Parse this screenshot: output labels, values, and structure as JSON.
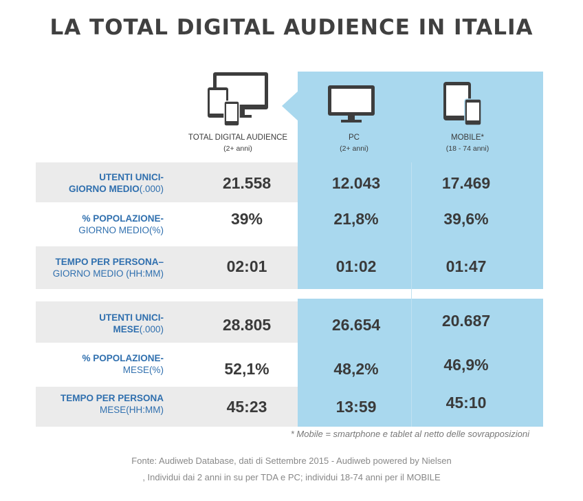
{
  "title": "LA TOTAL DIGITAL AUDIENCE IN ITALIA",
  "columns": [
    {
      "label": "TOTAL DIGITAL AUDIENCE",
      "sub": "(2+ anni)",
      "icon": "multi-device-icon"
    },
    {
      "label": "PC",
      "sub": "(2+ anni)",
      "icon": "monitor-icon"
    },
    {
      "label": "MOBILE*",
      "sub": "(18 - 74 anni)",
      "icon": "tablet-phone-icon"
    }
  ],
  "rows": [
    {
      "l1": "UTENTI UNICI-",
      "l2a": "GIORNO MEDIO",
      "l2b": "(.000)",
      "values": [
        "21.558",
        "12.043",
        "17.469"
      ]
    },
    {
      "l1": "% POPOLAZIONE-",
      "l2a": "",
      "l2b": "GIORNO MEDIO(%)",
      "values": [
        "39%",
        "21,8%",
        "39,6%"
      ]
    },
    {
      "l1": "TEMPO PER PERSONA–",
      "l2a": "",
      "l2b": "GIORNO MEDIO (HH:MM)",
      "values": [
        "02:01",
        "01:02",
        "01:47"
      ]
    },
    {
      "l1": "UTENTI UNICI-",
      "l2a": "MESE",
      "l2b": "(.000)",
      "values": [
        "28.805",
        "26.654",
        "20.687"
      ]
    },
    {
      "l1": "% POPOLAZIONE-",
      "l2a": "",
      "l2b": "MESE(%)",
      "values": [
        "52,1%",
        "48,2%",
        "46,9%"
      ]
    },
    {
      "l1": "TEMPO PER PERSONA",
      "l2a": "",
      "l2b": "MESE(HH:MM)",
      "values": [
        "45:23",
        "13:59",
        "45:10"
      ]
    }
  ],
  "note": "* Mobile = smartphone e tablet al netto delle sovrapposizioni",
  "source_line1": "Fonte: Audiweb Database, dati di Settembre 2015 - Audiweb powered by Nielsen",
  "source_line2": ", Individui dai 2 anni in su  per TDA e PC; individui 18-74 anni per il MOBILE",
  "colors": {
    "panel": "#a9d8ee",
    "label": "#2f6fae",
    "band": "#ebebeb"
  }
}
